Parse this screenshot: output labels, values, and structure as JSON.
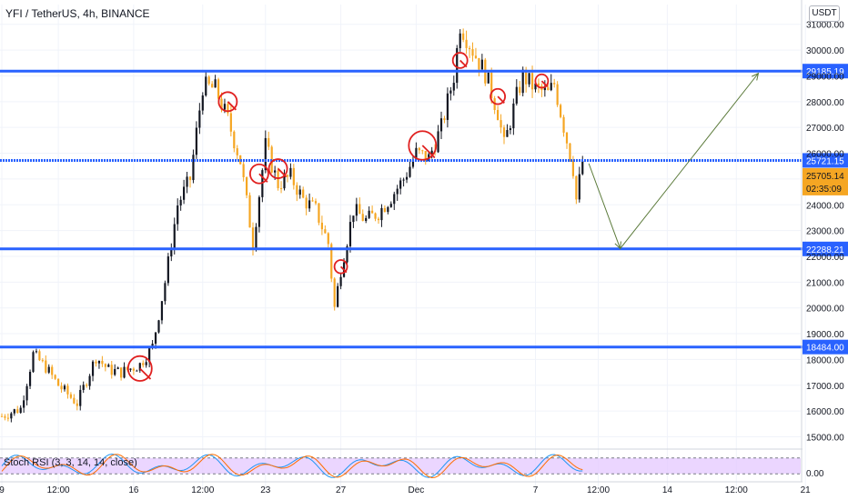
{
  "header": {
    "title": "YFI / TetherUS, 4h, BINANCE",
    "currency": "USDT"
  },
  "oscillator": {
    "label": "Stoch RSI (3, 3, 14, 14, close)",
    "zero_label": "0.00"
  },
  "chart_data": {
    "type": "candlestick",
    "symbol": "YFI / TetherUS",
    "interval": "4h",
    "exchange": "BINANCE",
    "ylim": [
      14600,
      31800
    ],
    "y_ticks": [
      15000,
      16000,
      17000,
      18000,
      19000,
      20000,
      21000,
      22000,
      23000,
      24000,
      25000,
      26000,
      27000,
      28000,
      29000,
      30000,
      31000
    ],
    "y_tick_labels": [
      "15000.00",
      "16000.00",
      "17000.00",
      "18000.00",
      "19000.00",
      "20000.00",
      "21000.00",
      "22000.00",
      "23000.00",
      "24000.00",
      "25000.00",
      "26000.00",
      "27000.00",
      "28000.00",
      "29000.00",
      "30000.00",
      "31000.00"
    ],
    "x_ticks": [
      {
        "label": "9",
        "bar": 0
      },
      {
        "label": "12:00",
        "bar": 18
      },
      {
        "label": "16",
        "bar": 42
      },
      {
        "label": "12:00",
        "bar": 64
      },
      {
        "label": "23",
        "bar": 84
      },
      {
        "label": "27",
        "bar": 108
      },
      {
        "label": "Dec",
        "bar": 132
      },
      {
        "label": "7",
        "bar": 170
      },
      {
        "label": "12:00",
        "bar": 190
      },
      {
        "label": "14",
        "bar": 212
      },
      {
        "label": "12:00",
        "bar": 234
      },
      {
        "label": "21",
        "bar": 256
      }
    ],
    "horizontal_levels": [
      {
        "value": 29185.19,
        "label": "29185.19",
        "style": "solid"
      },
      {
        "value": 25721.15,
        "label": "25721.15",
        "style": "dotted"
      },
      {
        "value": 22288.21,
        "label": "22288.21",
        "style": "solid"
      },
      {
        "value": 18484.0,
        "label": "18484.00",
        "style": "solid"
      }
    ],
    "last_price": {
      "value": 25705.14,
      "label": "25705.14",
      "countdown": "02:35:09"
    },
    "projection_path": [
      {
        "bar": 187,
        "value": 25600
      },
      {
        "bar": 197,
        "value": 22300
      },
      {
        "bar": 241,
        "value": 29100
      }
    ],
    "price_path": [
      {
        "bar": 0,
        "value": 15800
      },
      {
        "bar": 6,
        "value": 16100
      },
      {
        "bar": 10,
        "value": 18200
      },
      {
        "bar": 14,
        "value": 17700
      },
      {
        "bar": 18,
        "value": 17000
      },
      {
        "bar": 24,
        "value": 16300
      },
      {
        "bar": 30,
        "value": 18100
      },
      {
        "bar": 34,
        "value": 17600
      },
      {
        "bar": 38,
        "value": 17500
      },
      {
        "bar": 44,
        "value": 17800
      },
      {
        "bar": 48,
        "value": 18500
      },
      {
        "bar": 52,
        "value": 21000
      },
      {
        "bar": 56,
        "value": 24000
      },
      {
        "bar": 60,
        "value": 25000
      },
      {
        "bar": 64,
        "value": 28600
      },
      {
        "bar": 68,
        "value": 28500
      },
      {
        "bar": 72,
        "value": 27300
      },
      {
        "bar": 76,
        "value": 25700
      },
      {
        "bar": 80,
        "value": 22500
      },
      {
        "bar": 84,
        "value": 26300
      },
      {
        "bar": 88,
        "value": 24800
      },
      {
        "bar": 92,
        "value": 25100
      },
      {
        "bar": 96,
        "value": 24200
      },
      {
        "bar": 100,
        "value": 23800
      },
      {
        "bar": 104,
        "value": 22500
      },
      {
        "bar": 106,
        "value": 20000
      },
      {
        "bar": 108,
        "value": 21500
      },
      {
        "bar": 112,
        "value": 23800
      },
      {
        "bar": 116,
        "value": 23400
      },
      {
        "bar": 120,
        "value": 23700
      },
      {
        "bar": 124,
        "value": 24300
      },
      {
        "bar": 128,
        "value": 25000
      },
      {
        "bar": 132,
        "value": 26000
      },
      {
        "bar": 136,
        "value": 25800
      },
      {
        "bar": 140,
        "value": 27000
      },
      {
        "bar": 144,
        "value": 29000
      },
      {
        "bar": 146,
        "value": 31000
      },
      {
        "bar": 150,
        "value": 30000
      },
      {
        "bar": 154,
        "value": 29100
      },
      {
        "bar": 158,
        "value": 27600
      },
      {
        "bar": 160,
        "value": 26300
      },
      {
        "bar": 164,
        "value": 28200
      },
      {
        "bar": 166,
        "value": 29000
      },
      {
        "bar": 170,
        "value": 28500
      },
      {
        "bar": 174,
        "value": 28300
      },
      {
        "bar": 176,
        "value": 28700
      },
      {
        "bar": 180,
        "value": 26500
      },
      {
        "bar": 182,
        "value": 25400
      },
      {
        "bar": 183,
        "value": 24200
      },
      {
        "bar": 185,
        "value": 25700
      }
    ],
    "stoch_rsi": {
      "range": [
        0,
        100
      ],
      "levels": [
        80,
        20
      ]
    },
    "colors": {
      "up": "#131722",
      "down": "#f5a623",
      "level_line": "#2962ff",
      "level_label_bg": "#2962ff",
      "last_price_bg": "#f5a623",
      "projection": "#5b7a3a",
      "annotation": "#e0201f",
      "stoch_fill": "#e6ccff"
    }
  }
}
